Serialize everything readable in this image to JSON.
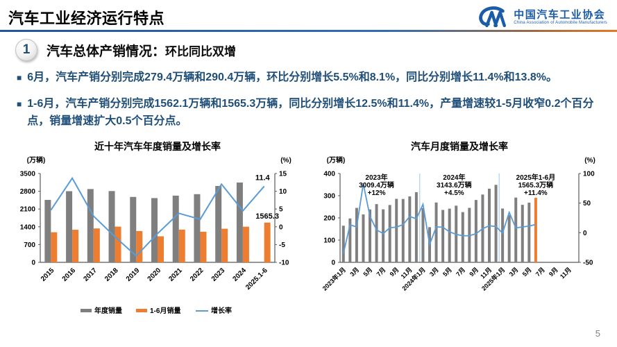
{
  "header": {
    "title": "汽车工业经济运行特点",
    "logo": {
      "org_cn": "中国汽车工业协会",
      "org_en": "China Association of Automobile Manufacturers",
      "brand_color": "#1B5CA8"
    }
  },
  "section": {
    "number": "1",
    "title_main": "汽车总体产销情况：",
    "title_sub": "环比同比双增"
  },
  "ui": {
    "bullet_marker": "■"
  },
  "bullets": [
    "6月，汽车产销分别完成279.4万辆和290.4万辆，环比分别增长5.5%和8.1%，同比分别增长11.4%和13.8%。",
    "1-6月，汽车产销分别完成1562.1万辆和1565.3万辆，同比分别增长12.5%和11.4%，产量增速较1-5月收窄0.2个百分点，销量增速扩大0.5个百分点。"
  ],
  "page_number": "5",
  "chart_data": [
    {
      "type": "bar+line",
      "title": "近十年汽车年度销量及增长率",
      "left_axis": {
        "unit": "(万辆)",
        "min": 0,
        "max": 3500,
        "step": 700
      },
      "right_axis": {
        "unit": "(%)",
        "min": -10,
        "max": 15,
        "step": 5
      },
      "categories": [
        "2015",
        "2016",
        "2017",
        "2018",
        "2019",
        "2020",
        "2021",
        "2022",
        "2023",
        "2024",
        "2025.1-6"
      ],
      "series": [
        {
          "name": "年度销量",
          "type": "bar",
          "color": "#7F7F7F",
          "values": [
            2459.8,
            2802.8,
            2887.9,
            2808.1,
            2576.9,
            2531.1,
            2627.5,
            2686.4,
            3009.4,
            3143.6,
            null
          ]
        },
        {
          "name": "1-6月销量",
          "type": "bar",
          "color": "#ED7D31",
          "values": [
            1185.0,
            1283.0,
            1335.4,
            1406.6,
            1232.3,
            1025.7,
            1289.1,
            1205.7,
            1323.9,
            1404.7,
            1565.3
          ]
        },
        {
          "name": "增长率",
          "type": "line",
          "color": "#5B9BD5",
          "axis": "right",
          "values": [
            4.7,
            13.7,
            3.0,
            -2.8,
            -8.2,
            -1.9,
            3.8,
            2.1,
            12.0,
            4.5,
            11.4
          ]
        }
      ],
      "point_labels": {
        "growth_last": "11.4",
        "h1_sales_last": "1565.3"
      },
      "legend_position": "bottom",
      "grid": false
    },
    {
      "type": "bar+line",
      "title": "汽车月度销量及增长率",
      "left_axis": {
        "unit": "(万辆)",
        "min": 0,
        "max": 400,
        "step": 100
      },
      "right_axis": {
        "unit": "(%)",
        "min": -50,
        "max": 100,
        "step": 50
      },
      "axis_slots": 36,
      "tick_labels": [
        "2023年1月",
        "3月",
        "5月",
        "7月",
        "9月",
        "11月",
        "2024年1月",
        "3月",
        "5月",
        "7月",
        "9月",
        "11月",
        "2025年1月",
        "3月",
        "5月",
        "7月",
        "9月",
        "11月"
      ],
      "divider_slots": [
        12,
        24
      ],
      "divider_color": "#BDD7EE",
      "sales": {
        "color": "#7F7F7F",
        "highlight_index": 29,
        "highlight_color": "#ED7D31",
        "values": [
          164.9,
          197.6,
          245.1,
          215.9,
          238.2,
          262.2,
          238.7,
          258.2,
          285.8,
          285.3,
          297.0,
          315.6,
          243.9,
          158.4,
          269.4,
          235.9,
          241.7,
          255.2,
          226.2,
          245.3,
          280.9,
          305.3,
          331.6,
          348.9,
          242.3,
          212.9,
          291.5,
          259.0,
          268.6,
          290.4
        ]
      },
      "growth": {
        "color": "#5B9BD5",
        "values": [
          -35.0,
          13.5,
          9.7,
          82.7,
          27.9,
          4.8,
          -1.4,
          8.4,
          9.5,
          13.8,
          27.4,
          23.5,
          47.9,
          -19.9,
          9.9,
          9.3,
          1.5,
          -2.7,
          -5.2,
          -5.0,
          -1.7,
          7.0,
          11.7,
          10.5,
          -0.6,
          34.4,
          8.2,
          9.8,
          11.2,
          13.8
        ]
      },
      "annotations": [
        {
          "slot": 5.0,
          "lines": [
            "2023年",
            "3009.4万辆",
            "+12%"
          ]
        },
        {
          "slot": 16.7,
          "lines": [
            "2024年",
            "3143.6万辆",
            "+4.5%"
          ]
        },
        {
          "slot": 29.0,
          "lines": [
            "2025年1-6月",
            "1565.3万辆",
            "+11.4%"
          ]
        }
      ],
      "grid": false
    }
  ]
}
